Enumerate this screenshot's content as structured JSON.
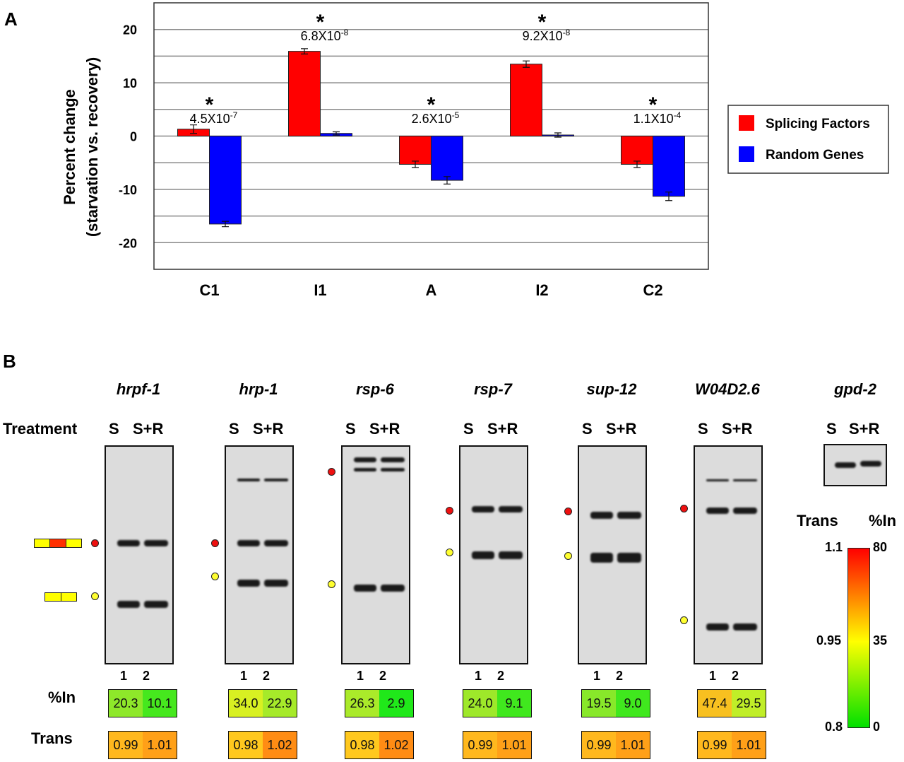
{
  "panels": {
    "a": "A",
    "b": "B"
  },
  "chart_data": {
    "type": "bar",
    "categories": [
      "C1",
      "I1",
      "A",
      "I2",
      "C2"
    ],
    "series": [
      {
        "name": "Splicing Factors",
        "color": "#ff0000",
        "values": [
          1.3,
          15.9,
          -5.3,
          13.5,
          -5.3
        ],
        "errors": [
          0.8,
          0.5,
          0.6,
          0.6,
          0.6
        ]
      },
      {
        "name": "Random Genes",
        "color": "#0000ff",
        "values": [
          -16.5,
          0.5,
          -8.3,
          0.2,
          -11.3
        ],
        "errors": [
          0.5,
          0.3,
          0.7,
          0.4,
          0.8
        ]
      }
    ],
    "ylabel": [
      "Percent change",
      "(starvation vs. recovery)"
    ],
    "xlabel": "",
    "ylim": [
      -25,
      25
    ],
    "yticks": [
      -20,
      -10,
      0,
      10,
      20
    ],
    "grid_step": 5,
    "grid": true,
    "legend": "right",
    "annotations": [
      {
        "category": "C1",
        "star": "*",
        "p": "4.5X10",
        "exp": "-7"
      },
      {
        "category": "I1",
        "star": "*",
        "p": "6.8X10",
        "exp": "-8"
      },
      {
        "category": "A",
        "star": "*",
        "p": "2.6X10",
        "exp": "-5"
      },
      {
        "category": "I2",
        "star": "*",
        "p": "9.2X10",
        "exp": "-8"
      },
      {
        "category": "C2",
        "star": "*",
        "p": "1.1X10",
        "exp": "-4"
      }
    ]
  },
  "gels": {
    "treatment_label": "Treatment",
    "lane_s": "S",
    "lane_sr": "S+R",
    "lane_nums": [
      "1",
      "2"
    ],
    "items": [
      {
        "gene": "hrpf-1",
        "in": [
          "20.3",
          "10.1"
        ],
        "in_colors": [
          "#8ee82a",
          "#46e81e"
        ],
        "trans": [
          "0.99",
          "1.01"
        ],
        "trans_colors": [
          "#ffb81e",
          "#ffa018"
        ]
      },
      {
        "gene": "hrp-1",
        "in": [
          "34.0",
          "22.9"
        ],
        "in_colors": [
          "#d8f022",
          "#a6ea2a"
        ],
        "trans": [
          "0.98",
          "1.02"
        ],
        "trans_colors": [
          "#ffc81e",
          "#ff8c14"
        ]
      },
      {
        "gene": "rsp-6",
        "in": [
          "26.3",
          "2.9"
        ],
        "in_colors": [
          "#aaea2a",
          "#20e81a"
        ],
        "trans": [
          "0.98",
          "1.02"
        ],
        "trans_colors": [
          "#ffc81e",
          "#ff8c14"
        ]
      },
      {
        "gene": "rsp-7",
        "in": [
          "24.0",
          "9.1"
        ],
        "in_colors": [
          "#9ee82a",
          "#40e81e"
        ],
        "trans": [
          "0.99",
          "1.01"
        ],
        "trans_colors": [
          "#ffb81e",
          "#ffa018"
        ]
      },
      {
        "gene": "sup-12",
        "in": [
          "19.5",
          "9.0"
        ],
        "in_colors": [
          "#88e82a",
          "#40e81e"
        ],
        "trans": [
          "0.99",
          "1.01"
        ],
        "trans_colors": [
          "#ffb81e",
          "#ffa018"
        ]
      },
      {
        "gene": "W04D2.6",
        "in": [
          "47.4",
          "29.5"
        ],
        "in_colors": [
          "#f8c020",
          "#c0ee28"
        ],
        "trans": [
          "0.99",
          "1.01"
        ],
        "trans_colors": [
          "#ffb81e",
          "#ffa018"
        ]
      }
    ],
    "control": {
      "gene": "gpd-2"
    },
    "row_in": "%In",
    "row_trans": "Trans"
  },
  "scale": {
    "trans_label": "Trans",
    "in_label": "%In",
    "trans_ticks": [
      "1.1",
      "0.95",
      "0.8"
    ],
    "in_ticks": [
      "80",
      "35",
      "0"
    ],
    "colors": [
      "#ff0000",
      "#ffff00",
      "#00e000"
    ]
  }
}
